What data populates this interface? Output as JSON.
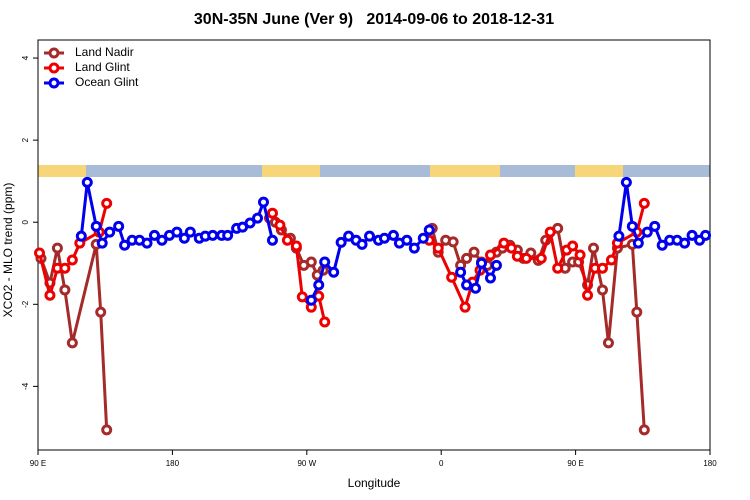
{
  "chart_data": {
    "type": "line",
    "title": "30N-35N June (Ver 9)   2014-09-06 to 2018-12-31",
    "x_label": "Longitude",
    "y_label": "XCO2 - MLO trend (ppm)",
    "xlim": [
      90,
      540
    ],
    "ylim": [
      -5.55,
      4.44
    ],
    "xticks": [
      {
        "value": 90,
        "label": "90 E"
      },
      180,
      {
        "value": 270,
        "label": "90 W"
      },
      {
        "value": 360,
        "label": "0"
      },
      {
        "value": 450,
        "label": "90 E"
      },
      {
        "value": 540,
        "label": "180"
      }
    ],
    "yticks": [
      -4,
      -2,
      0,
      2,
      4
    ],
    "grid": false,
    "legend": "top-left",
    "series": [
      {
        "name": "Land Nadir",
        "color": "#a52a2a",
        "x": [
          92,
          98,
          103,
          108,
          113,
          129,
          132,
          136,
          null,
          245,
          249,
          253,
          259,
          263,
          268,
          273,
          277,
          281,
          null,
          354,
          358,
          363,
          368,
          373,
          377,
          382,
          387,
          391,
          397,
          401,
          406,
          411,
          415,
          420,
          425,
          430,
          438,
          443,
          448,
          452,
          458,
          462,
          468,
          472,
          478,
          488,
          491,
          496
        ],
        "values": [
          -0.88,
          -1.48,
          -0.63,
          -1.65,
          -2.94,
          -0.54,
          -2.19,
          -5.06,
          null,
          0.1,
          0,
          -0.19,
          -0.39,
          -0.63,
          -1.05,
          -0.97,
          -1.29,
          -1.17,
          null,
          -0.15,
          -0.73,
          -0.44,
          -0.48,
          -1.05,
          -0.88,
          -0.73,
          -0.97,
          -1.05,
          -0.73,
          -0.63,
          -0.56,
          -0.68,
          -0.88,
          -0.75,
          -0.93,
          -0.44,
          -0.15,
          -1.12,
          -0.97,
          -0.97,
          -1.53,
          -0.63,
          -1.65,
          -2.94,
          -0.63,
          -0.54,
          -2.19,
          -5.06
        ]
      },
      {
        "name": "Land Glint",
        "color": "#ee0000",
        "x": [
          91,
          98,
          103,
          108,
          113,
          118,
          131,
          136,
          null,
          247,
          252,
          257,
          263,
          267,
          273,
          278,
          282,
          null,
          352,
          358,
          367,
          376,
          381,
          386,
          393,
          402,
          407,
          411,
          417,
          427,
          433,
          438,
          444,
          448,
          453,
          458,
          463,
          468,
          474,
          478,
          491,
          496
        ],
        "values": [
          -0.75,
          -1.78,
          -1.12,
          -1.12,
          -0.92,
          -0.51,
          -0.24,
          0.46,
          null,
          0.22,
          -0.07,
          -0.44,
          -0.58,
          -1.82,
          -2.07,
          -1.8,
          -2.43,
          null,
          -0.44,
          -0.63,
          -1.34,
          -2.07,
          -1.46,
          -1.17,
          -0.8,
          -0.51,
          -0.63,
          -0.83,
          -0.88,
          -0.88,
          -0.24,
          -1.12,
          -0.68,
          -0.58,
          -0.8,
          -1.78,
          -1.12,
          -1.12,
          -0.92,
          -0.51,
          -0.24,
          0.46
        ]
      },
      {
        "name": "Ocean Glint",
        "color": "#0000ee",
        "x": [
          119,
          123,
          129,
          133,
          138,
          144,
          148,
          153,
          158,
          163,
          168,
          173,
          178,
          183,
          188,
          192,
          198,
          202,
          207,
          213,
          217,
          223,
          227,
          232,
          237,
          241,
          247,
          null,
          273,
          278,
          282,
          288,
          293,
          298,
          303,
          307,
          312,
          318,
          322,
          328,
          332,
          337,
          342,
          348,
          352,
          null,
          373,
          377,
          383,
          387,
          393,
          397,
          null,
          479,
          484,
          488,
          492,
          498,
          503,
          508,
          513,
          518,
          523,
          528,
          533,
          537
        ],
        "values": [
          -0.34,
          0.97,
          -0.1,
          -0.51,
          -0.24,
          -0.1,
          -0.56,
          -0.44,
          -0.44,
          -0.51,
          -0.32,
          -0.44,
          -0.32,
          -0.24,
          -0.39,
          -0.24,
          -0.39,
          -0.34,
          -0.32,
          -0.32,
          -0.32,
          -0.15,
          -0.12,
          -0.02,
          0.1,
          0.49,
          -0.44,
          null,
          -1.9,
          -1.53,
          -0.97,
          -1.22,
          -0.49,
          -0.34,
          -0.44,
          -0.54,
          -0.34,
          -0.44,
          -0.39,
          -0.32,
          -0.51,
          -0.44,
          -0.63,
          -0.39,
          -0.19,
          null,
          -1.22,
          -1.53,
          -1.61,
          -1.0,
          -1.36,
          -1.05,
          null,
          -0.34,
          0.97,
          -0.1,
          -0.51,
          -0.24,
          -0.1,
          -0.56,
          -0.44,
          -0.44,
          -0.51,
          -0.32,
          -0.44,
          -0.32
        ]
      }
    ]
  }
}
